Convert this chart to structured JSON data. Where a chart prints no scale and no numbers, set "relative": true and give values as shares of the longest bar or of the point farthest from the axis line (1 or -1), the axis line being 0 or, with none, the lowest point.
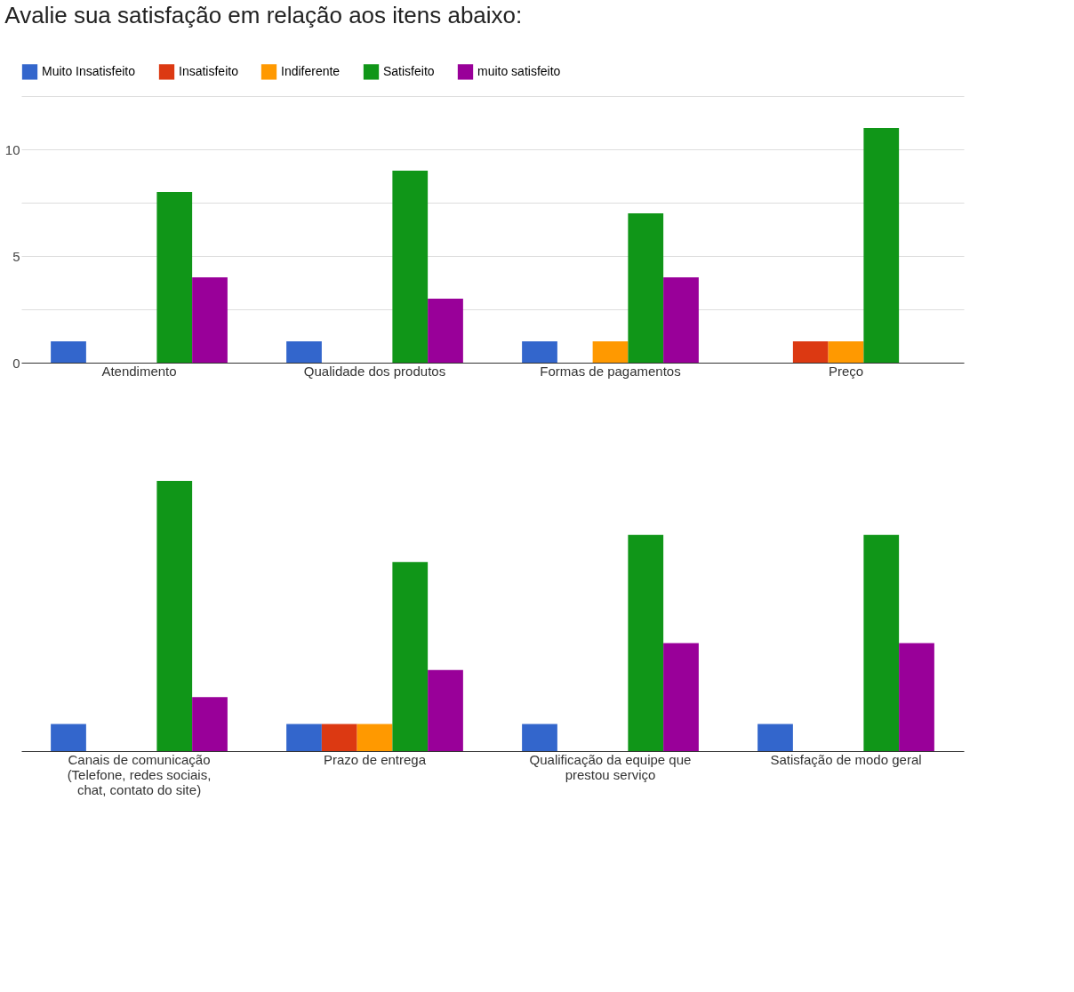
{
  "chart_data": [
    {
      "type": "bar",
      "title": "Avalie sua satisfação em relação aos itens abaixo:",
      "categories": [
        "Atendimento",
        "Qualidade dos produtos",
        "Formas de pagamentos",
        "Preço"
      ],
      "series": [
        {
          "name": "Muito Insatisfeito",
          "color": "#3366cc",
          "values": [
            1,
            1,
            1,
            0
          ]
        },
        {
          "name": "Insatisfeito",
          "color": "#dc3912",
          "values": [
            0,
            0,
            0,
            1
          ]
        },
        {
          "name": "Indiferente",
          "color": "#ff9900",
          "values": [
            0,
            0,
            1,
            1
          ]
        },
        {
          "name": "Satisfeito",
          "color": "#109618",
          "values": [
            8,
            9,
            7,
            11
          ]
        },
        {
          "name": "muito satisfeito",
          "color": "#990099",
          "values": [
            4,
            3,
            4,
            0
          ]
        }
      ],
      "ylim": [
        0,
        12.5
      ],
      "yticks": [
        0,
        {
          "value": 2.5,
          "label": null
        },
        5,
        {
          "value": 7.5,
          "label": null
        },
        10,
        {
          "value": 12.5,
          "label": null
        }
      ],
      "grid": "y",
      "legend": "top"
    },
    {
      "type": "bar",
      "categories": [
        "Canais de comunicação (Telefone, redes sociais, chat, contato do site)",
        "Prazo de entrega",
        "Qualificação da equipe que prestou serviço",
        "Satisfação de modo geral"
      ],
      "series": [
        {
          "color": "#3366cc",
          "values": [
            0.1,
            0.1,
            0.1,
            0.1
          ]
        },
        {
          "color": "#dc3912",
          "values": [
            0,
            0.1,
            0,
            0
          ]
        },
        {
          "color": "#ff9900",
          "values": [
            0,
            0.1,
            0,
            0
          ]
        },
        {
          "color": "#109618",
          "values": [
            1,
            0.7,
            0.8,
            0.8
          ]
        },
        {
          "color": "#990099",
          "values": [
            0.2,
            0.3,
            0.4,
            0.4
          ]
        }
      ],
      "relative": true,
      "legend": false
    }
  ]
}
